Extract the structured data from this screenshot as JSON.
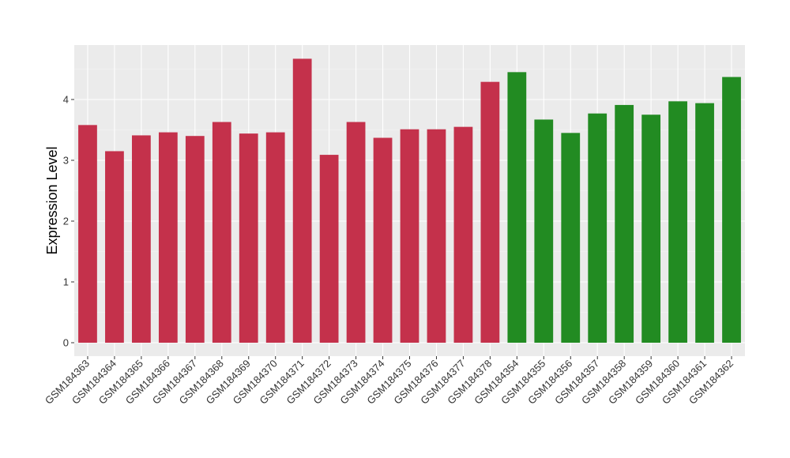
{
  "chart_data": {
    "type": "bar",
    "title": "",
    "xlabel": "",
    "ylabel": "Expression Level",
    "ylim": [
      0,
      4.9
    ],
    "y_ticks": [
      0,
      1,
      2,
      3,
      4
    ],
    "grid": true,
    "background": "#EBEBEB",
    "categories": [
      "GSM184363",
      "GSM184364",
      "GSM184365",
      "GSM184366",
      "GSM184367",
      "GSM184368",
      "GSM184369",
      "GSM184370",
      "GSM184371",
      "GSM184372",
      "GSM184373",
      "GSM184374",
      "GSM184375",
      "GSM184376",
      "GSM184377",
      "GSM184378",
      "GSM184354",
      "GSM184355",
      "GSM184356",
      "GSM184357",
      "GSM184358",
      "GSM184359",
      "GSM184360",
      "GSM184361",
      "GSM184362"
    ],
    "values": [
      3.58,
      3.15,
      3.41,
      3.46,
      3.4,
      3.63,
      3.44,
      3.46,
      4.67,
      3.09,
      3.63,
      3.37,
      3.51,
      3.51,
      3.55,
      4.29,
      4.45,
      3.67,
      3.45,
      3.77,
      3.91,
      3.75,
      3.97,
      3.94,
      4.37
    ],
    "bar_colors": [
      "#C4314B",
      "#C4314B",
      "#C4314B",
      "#C4314B",
      "#C4314B",
      "#C4314B",
      "#C4314B",
      "#C4314B",
      "#C4314B",
      "#C4314B",
      "#C4314B",
      "#C4314B",
      "#C4314B",
      "#C4314B",
      "#C4314B",
      "#C4314B",
      "#228B22",
      "#228B22",
      "#228B22",
      "#228B22",
      "#228B22",
      "#228B22",
      "#228B22",
      "#228B22",
      "#228B22"
    ]
  }
}
